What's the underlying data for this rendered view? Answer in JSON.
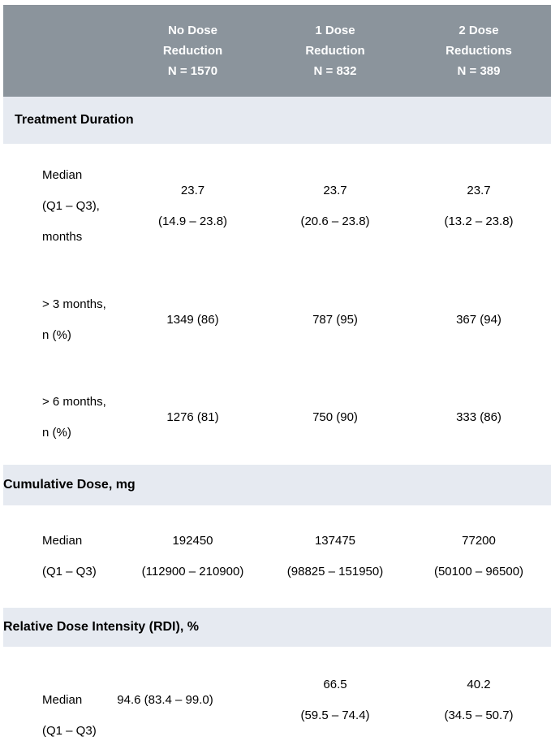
{
  "header": {
    "columns": [
      {
        "lines": [
          "No Dose",
          "Reduction",
          "N = 1570"
        ]
      },
      {
        "lines": [
          "1 Dose",
          "Reduction",
          "N = 832"
        ]
      },
      {
        "lines": [
          "2 Dose",
          "Reductions",
          "N = 389"
        ]
      }
    ]
  },
  "sections": [
    {
      "title": "Treatment Duration",
      "rows": [
        {
          "label": [
            "Median",
            "(Q1 – Q3),",
            "months"
          ],
          "values": [
            [
              "23.7",
              "(14.9 – 23.8)"
            ],
            [
              "23.7",
              "(20.6 – 23.8)"
            ],
            [
              "23.7",
              "(13.2 – 23.8)"
            ]
          ]
        },
        {
          "label": [
            "> 3 months,",
            "n (%)"
          ],
          "values": [
            [
              "1349 (86)"
            ],
            [
              "787 (95)"
            ],
            [
              "367 (94)"
            ]
          ]
        },
        {
          "label": [
            "> 6 months,",
            "n (%)"
          ],
          "values": [
            [
              "1276 (81)"
            ],
            [
              "750 (90)"
            ],
            [
              "333 (86)"
            ]
          ]
        }
      ]
    },
    {
      "title": "Cumulative Dose, mg",
      "rows": [
        {
          "label": [
            "Median",
            "(Q1 – Q3)"
          ],
          "values": [
            [
              "192450",
              "(112900 – 210900)"
            ],
            [
              "137475",
              "(98825 – 151950)"
            ],
            [
              "77200",
              "(50100 – 96500)"
            ]
          ]
        }
      ]
    },
    {
      "title": "Relative Dose Intensity (RDI), %",
      "rows": [
        {
          "label": [
            "Median",
            "(Q1 – Q3)"
          ],
          "values": [
            [
              "94.6 (83.4 – 99.0)"
            ],
            [
              "66.5",
              "(59.5 – 74.4)"
            ],
            [
              "40.2",
              "(34.5 – 50.7)"
            ]
          ]
        }
      ]
    }
  ],
  "colors": {
    "header_bg": "#8B949C",
    "header_text": "#FFFFFF",
    "section_bg": "#E6EAF1",
    "body_text": "#000000"
  }
}
